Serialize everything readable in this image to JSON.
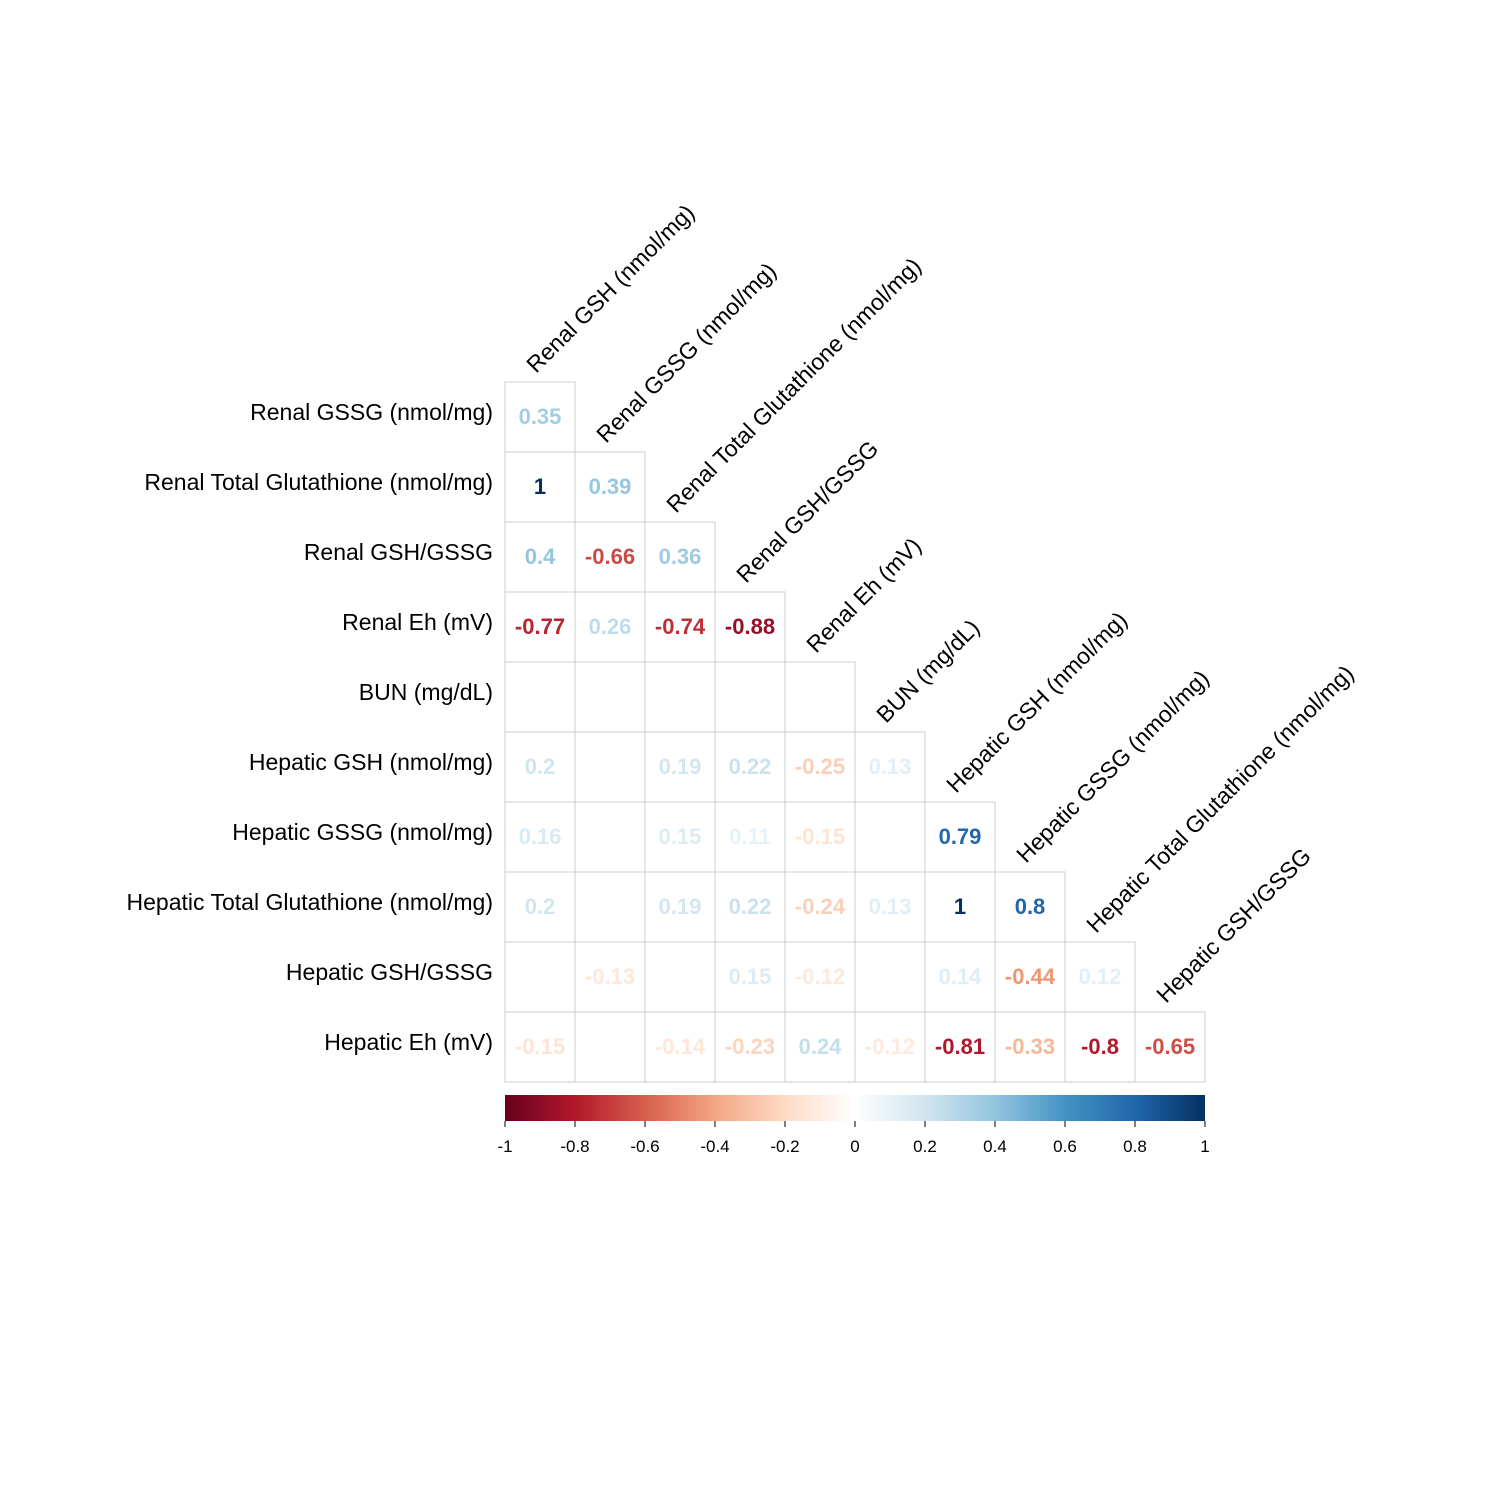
{
  "chart_data": {
    "type": "heatmap",
    "title": "",
    "rows": [
      "Renal GSSG (nmol/mg)",
      "Renal Total Glutathione (nmol/mg)",
      "Renal GSH/GSSG",
      "Renal Eh (mV)",
      "BUN (mg/dL)",
      "Hepatic GSH (nmol/mg)",
      "Hepatic GSSG (nmol/mg)",
      "Hepatic Total Glutathione (nmol/mg)",
      "Hepatic GSH/GSSG",
      "Hepatic Eh (mV)"
    ],
    "columns": [
      "Renal GSH (nmol/mg)",
      "Renal GSSG (nmol/mg)",
      "Renal Total Glutathione (nmol/mg)",
      "Renal GSH/GSSG",
      "Renal Eh (mV)",
      "BUN (mg/dL)",
      "Hepatic GSH (nmol/mg)",
      "Hepatic GSSG (nmol/mg)",
      "Hepatic Total Glutathione (nmol/mg)",
      "Hepatic GSH/GSSG"
    ],
    "values": [
      [
        0.35
      ],
      [
        1,
        0.39
      ],
      [
        0.4,
        -0.66,
        0.36
      ],
      [
        -0.77,
        0.26,
        -0.74,
        -0.88
      ],
      [
        null,
        null,
        null,
        null,
        null
      ],
      [
        0.2,
        null,
        0.19,
        0.22,
        -0.25,
        0.13
      ],
      [
        0.16,
        null,
        0.15,
        0.11,
        -0.15,
        null,
        0.79
      ],
      [
        0.2,
        null,
        0.19,
        0.22,
        -0.24,
        0.13,
        1,
        0.8
      ],
      [
        null,
        -0.13,
        null,
        0.15,
        -0.12,
        null,
        0.14,
        -0.44,
        0.12
      ],
      [
        -0.15,
        null,
        -0.14,
        -0.23,
        0.24,
        -0.12,
        -0.81,
        -0.33,
        -0.8,
        -0.65
      ]
    ],
    "colorbar": {
      "range": [
        -1,
        1
      ],
      "ticks": [
        "-1",
        "-0.8",
        "-0.6",
        "-0.4",
        "-0.2",
        "0",
        "0.2",
        "0.4",
        "0.6",
        "0.8",
        "1"
      ],
      "colors": [
        "#67001F",
        "#B2182B",
        "#D6604D",
        "#F4A582",
        "#FDDBC7",
        "#FFFFFF",
        "#D1E5F0",
        "#92C5DE",
        "#4393C3",
        "#2166AC",
        "#053061"
      ]
    }
  }
}
